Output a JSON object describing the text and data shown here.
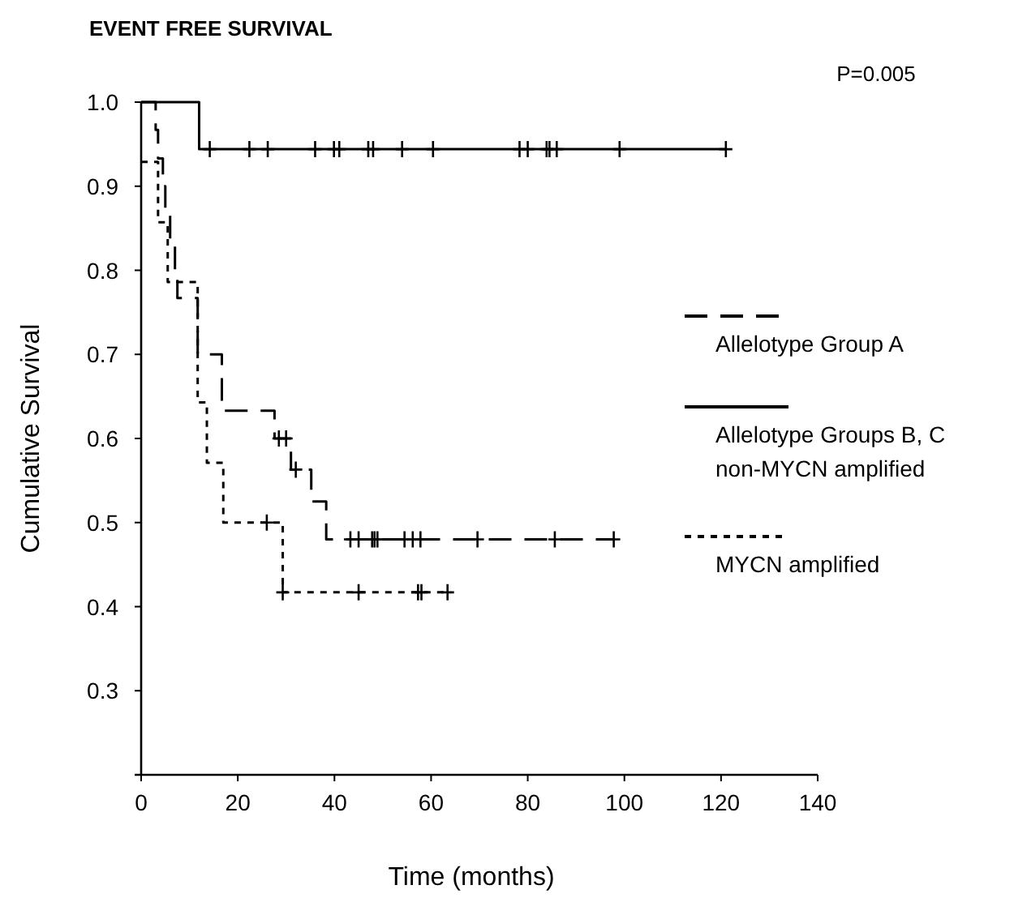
{
  "chart_data": {
    "type": "step",
    "title": "EVENT FREE SURVIVAL",
    "annotations": [
      "P=0.005"
    ],
    "xlabel": "Time (months)",
    "ylabel": "Cumulative Survival",
    "xlim": [
      0,
      140
    ],
    "xticks": [
      0,
      20,
      40,
      60,
      80,
      100,
      120,
      140
    ],
    "ylim": [
      0.2,
      1.0
    ],
    "yticks": [
      {
        "value": 0.2,
        "label": null
      },
      0.3,
      0.4,
      0.5,
      0.6,
      0.7,
      0.8,
      0.9,
      {
        "value": 1,
        "label": "1.0"
      }
    ],
    "grid": false,
    "legend": "right",
    "series": [
      {
        "name": "Allelotype Group A",
        "color": "#000000",
        "line_style": "dashed",
        "x": [
          0,
          3,
          3.5,
          4.5,
          5,
          6,
          7,
          7.5,
          11.7,
          16.7,
          27.6,
          31,
          35.2,
          38.3,
          98
        ],
        "values": [
          1,
          0.967,
          0.933,
          0.9,
          0.867,
          0.833,
          0.8,
          0.767,
          0.7,
          0.633,
          0.6,
          0.563,
          0.525,
          0.48,
          0.48
        ]
      },
      {
        "name": "Allelotype Groups B, C\nnon-MYCN amplified",
        "color": "#000000",
        "line_style": "solid",
        "x": [
          0,
          12,
          121
        ],
        "values": [
          1,
          0.944,
          0.944
        ]
      },
      {
        "name": "MYCN amplified",
        "color": "#000000",
        "line_style": "dotted",
        "x": [
          0,
          3.5,
          5.5,
          11.7,
          13.6,
          17,
          29.3,
          64
        ],
        "values": [
          0.929,
          0.857,
          0.786,
          0.643,
          0.571,
          0.5,
          0.417,
          0.417
        ]
      },
      {
        "type": "scatter",
        "marker": "cross",
        "color": "#000000",
        "x": [
          28.5,
          30,
          32,
          43.3,
          45,
          47.8,
          48.3,
          48.9,
          54.5,
          56.2,
          57.8,
          69.6,
          85.6,
          97.8
        ],
        "values": [
          0.6,
          0.6,
          0.563,
          0.48,
          0.48,
          0.48,
          0.48,
          0.48,
          0.48,
          0.48,
          0.48,
          0.48,
          0.48,
          0.48
        ]
      },
      {
        "type": "scatter",
        "marker": "cross",
        "color": "#000000",
        "x": [
          14.2,
          22.4,
          26.2,
          36,
          39.9,
          41,
          47,
          48,
          54,
          60.4,
          78.3,
          80,
          83.9,
          84.5,
          86,
          99,
          121
        ],
        "values": [
          0.944,
          0.944,
          0.944,
          0.944,
          0.944,
          0.944,
          0.944,
          0.944,
          0.944,
          0.944,
          0.944,
          0.944,
          0.944,
          0.944,
          0.944,
          0.944,
          0.944
        ]
      },
      {
        "type": "scatter",
        "marker": "cross",
        "color": "#000000",
        "x": [
          26,
          29.3,
          45,
          57.3,
          58,
          63.4
        ],
        "values": [
          0.5,
          0.417,
          0.417,
          0.417,
          0.417,
          0.417
        ]
      }
    ]
  }
}
